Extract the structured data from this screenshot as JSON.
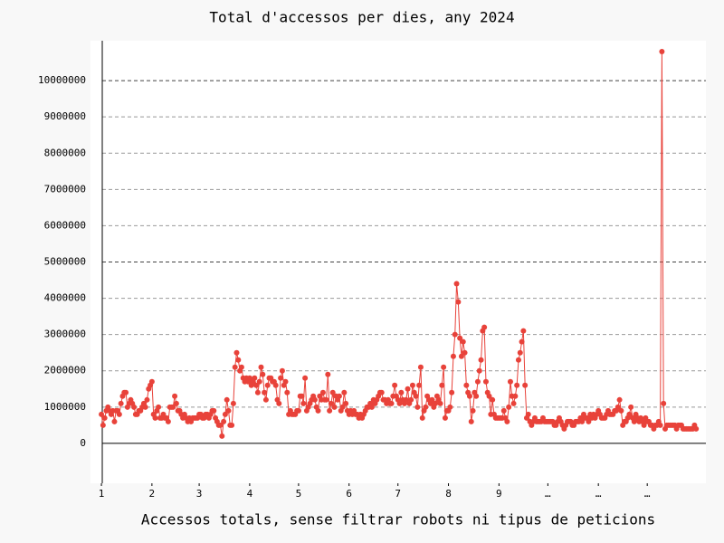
{
  "chart_data": {
    "type": "line",
    "title": "Total d'accessos per dies, any 2024",
    "x_label": "Accessos totals, sense filtrar robots ni tipus de peticions",
    "x": [
      1,
      2,
      3,
      4,
      5,
      6,
      7,
      8,
      9,
      10,
      11,
      12,
      13,
      14,
      15,
      16,
      17,
      18,
      19,
      20,
      21,
      22,
      23,
      24,
      25,
      26,
      27,
      28,
      29,
      30,
      31,
      32,
      33,
      34,
      35,
      36,
      37,
      38,
      39,
      40,
      41,
      42,
      43,
      44,
      45,
      46,
      47,
      48,
      49,
      50,
      51,
      52,
      53,
      54,
      55,
      56,
      57,
      58,
      59,
      60,
      61,
      62,
      63,
      64,
      65,
      66,
      67,
      68,
      69,
      70,
      71,
      72,
      73,
      74,
      75,
      76,
      77,
      78,
      79,
      80,
      81,
      82,
      83,
      84,
      85,
      86,
      87,
      88,
      89,
      90,
      91,
      92,
      93,
      94,
      95,
      96,
      97,
      98,
      99,
      100,
      101,
      102,
      103,
      104,
      105,
      106,
      107,
      108,
      109,
      110,
      111,
      112,
      113,
      114,
      115,
      116,
      117,
      118,
      119,
      120,
      121,
      122,
      123,
      124,
      125,
      126,
      127,
      128,
      129,
      130,
      131,
      132,
      133,
      134,
      135,
      136,
      137,
      138,
      139,
      140,
      141,
      142,
      143,
      144,
      145,
      146,
      147,
      148,
      149,
      150,
      151,
      152,
      153,
      154,
      155,
      156,
      157,
      158,
      159,
      160,
      161,
      162,
      163,
      164,
      165,
      166,
      167,
      168,
      169,
      170,
      171,
      172,
      173,
      174,
      175,
      176,
      177,
      178,
      179,
      180,
      181,
      182,
      183,
      184,
      185,
      186,
      187,
      188,
      189,
      190,
      191,
      192,
      193,
      194,
      195,
      196,
      197,
      198,
      199,
      200,
      201,
      202,
      203,
      204,
      205,
      206,
      207,
      208,
      209,
      210,
      211,
      212,
      213,
      214,
      215,
      216,
      217,
      218,
      219,
      220,
      221,
      222,
      223,
      224,
      225,
      226,
      227,
      228,
      229,
      230,
      231,
      232,
      233,
      234,
      235,
      236,
      237,
      238,
      239,
      240,
      241,
      242,
      243,
      244,
      245,
      246,
      247,
      248,
      249,
      250,
      251,
      252,
      253,
      254,
      255,
      256,
      257,
      258,
      259,
      260,
      261,
      262,
      263,
      264,
      265,
      266,
      267,
      268,
      269,
      270,
      271,
      272,
      273,
      274,
      275,
      276,
      277,
      278,
      279,
      280,
      281,
      282,
      283,
      284,
      285,
      286,
      287,
      288,
      289,
      290,
      291,
      292,
      293,
      294,
      295,
      296,
      297,
      298,
      299,
      300,
      301,
      302,
      303,
      304,
      305,
      306,
      307,
      308,
      309,
      310,
      311,
      312,
      313,
      314,
      315,
      316,
      317,
      318,
      319,
      320,
      321,
      322,
      323,
      324,
      325,
      326,
      327,
      328,
      329,
      330,
      331,
      332,
      333,
      334,
      335,
      336,
      337,
      338,
      339,
      340,
      341,
      342,
      343,
      344,
      345,
      346,
      347,
      348,
      349,
      350,
      351,
      352,
      353,
      354,
      355,
      356,
      357,
      358,
      359,
      360,
      361,
      362,
      363,
      364,
      365,
      366
    ],
    "values": [
      800000,
      500000,
      700000,
      900000,
      1000000,
      900000,
      800000,
      900000,
      600000,
      900000,
      900000,
      800000,
      1100000,
      1300000,
      1400000,
      1400000,
      1000000,
      1100000,
      1200000,
      1100000,
      1000000,
      800000,
      800000,
      900000,
      900000,
      1000000,
      1100000,
      1000000,
      1200000,
      1500000,
      1600000,
      1700000,
      800000,
      700000,
      900000,
      1000000,
      700000,
      700000,
      800000,
      700000,
      700000,
      600000,
      1000000,
      1000000,
      1000000,
      1300000,
      1100000,
      900000,
      900000,
      800000,
      700000,
      800000,
      700000,
      600000,
      700000,
      600000,
      700000,
      700000,
      700000,
      700000,
      800000,
      800000,
      700000,
      700000,
      800000,
      800000,
      700000,
      800000,
      900000,
      900000,
      700000,
      600000,
      500000,
      500000,
      200000,
      600000,
      800000,
      1200000,
      900000,
      500000,
      500000,
      1100000,
      2100000,
      2500000,
      2300000,
      2000000,
      2100000,
      1800000,
      1700000,
      1800000,
      1700000,
      1800000,
      1600000,
      1700000,
      1800000,
      1600000,
      1400000,
      1700000,
      2100000,
      1900000,
      1400000,
      1200000,
      1600000,
      1800000,
      1800000,
      1700000,
      1700000,
      1600000,
      1200000,
      1100000,
      1800000,
      2000000,
      1600000,
      1700000,
      1400000,
      800000,
      900000,
      800000,
      800000,
      800000,
      900000,
      900000,
      1300000,
      1300000,
      1100000,
      1800000,
      900000,
      1000000,
      1100000,
      1200000,
      1300000,
      1200000,
      1000000,
      900000,
      1300000,
      1200000,
      1400000,
      1200000,
      1200000,
      1900000,
      900000,
      1100000,
      1400000,
      1000000,
      1300000,
      1200000,
      1300000,
      900000,
      1000000,
      1400000,
      1100000,
      900000,
      800000,
      900000,
      800000,
      900000,
      800000,
      800000,
      700000,
      800000,
      700000,
      800000,
      900000,
      1000000,
      1000000,
      1100000,
      1000000,
      1200000,
      1100000,
      1200000,
      1300000,
      1400000,
      1400000,
      1200000,
      1200000,
      1100000,
      1200000,
      1100000,
      1100000,
      1300000,
      1600000,
      1300000,
      1200000,
      1100000,
      1400000,
      1200000,
      1100000,
      1200000,
      1500000,
      1100000,
      1200000,
      1600000,
      1400000,
      1300000,
      1000000,
      1600000,
      2100000,
      700000,
      900000,
      1000000,
      1300000,
      1200000,
      1100000,
      1200000,
      1000000,
      1100000,
      1300000,
      1200000,
      1100000,
      1600000,
      2100000,
      700000,
      900000,
      900000,
      1000000,
      1400000,
      2400000,
      3000000,
      4400000,
      3900000,
      2900000,
      2400000,
      2800000,
      2500000,
      1600000,
      1400000,
      1300000,
      600000,
      900000,
      1400000,
      1300000,
      1700000,
      2000000,
      2300000,
      3100000,
      3200000,
      1700000,
      1400000,
      1300000,
      800000,
      1200000,
      800000,
      700000,
      700000,
      700000,
      700000,
      700000,
      900000,
      700000,
      600000,
      1000000,
      1700000,
      1300000,
      1100000,
      1300000,
      1600000,
      2300000,
      2500000,
      2800000,
      3100000,
      1600000,
      700000,
      800000,
      600000,
      500000,
      600000,
      700000,
      600000,
      600000,
      600000,
      600000,
      700000,
      600000,
      600000,
      600000,
      600000,
      600000,
      600000,
      500000,
      500000,
      600000,
      700000,
      600000,
      500000,
      400000,
      500000,
      600000,
      600000,
      600000,
      500000,
      500000,
      600000,
      600000,
      600000,
      700000,
      600000,
      800000,
      700000,
      700000,
      600000,
      800000,
      700000,
      800000,
      700000,
      800000,
      900000,
      800000,
      700000,
      700000,
      700000,
      800000,
      900000,
      800000,
      800000,
      800000,
      900000,
      900000,
      1000000,
      1200000,
      900000,
      500000,
      600000,
      600000,
      700000,
      800000,
      1000000,
      700000,
      600000,
      800000,
      700000,
      600000,
      700000,
      600000,
      500000,
      700000,
      600000,
      600000,
      500000,
      500000,
      400000,
      500000,
      500000,
      600000,
      500000,
      10800000,
      1100000,
      400000,
      500000,
      500000,
      500000,
      500000,
      500000,
      500000,
      400000,
      500000,
      500000,
      500000,
      400000,
      400000,
      400000,
      400000,
      400000,
      400000,
      400000,
      500000,
      400000
    ],
    "color": "#e8423a",
    "xlim": [
      -5.7,
      372
    ],
    "xticks": [
      {
        "value": 1,
        "label": "1"
      },
      {
        "value": 32,
        "label": "2"
      },
      {
        "value": 61,
        "label": "3"
      },
      {
        "value": 92,
        "label": "4"
      },
      {
        "value": 122,
        "label": "5"
      },
      {
        "value": 153,
        "label": "6"
      },
      {
        "value": 183,
        "label": "7"
      },
      {
        "value": 214,
        "label": "8"
      },
      {
        "value": 245,
        "label": "9"
      },
      {
        "value": 275,
        "label": "…"
      },
      {
        "value": 306,
        "label": "…"
      },
      {
        "value": 336,
        "label": "…"
      }
    ],
    "ylim": [
      -1100000,
      11100000
    ],
    "yticks": [
      0,
      1000000,
      2000000,
      3000000,
      4000000,
      5000000,
      6000000,
      7000000,
      8000000,
      9000000,
      10000000
    ],
    "grid": true
  }
}
